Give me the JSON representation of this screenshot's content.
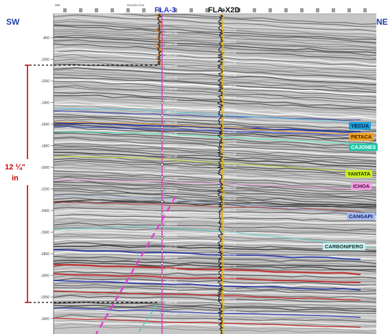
{
  "direction": {
    "left": "SW",
    "right": "NE"
  },
  "wells": [
    {
      "name": "FLA-3",
      "color": "#2b3bd6"
    },
    {
      "name": "FLA-X2D",
      "color": "#111111"
    }
  ],
  "thickness": {
    "line1": "12 ¼\"",
    "line2": "in",
    "color": "#c00000"
  },
  "header": {
    "left_tag": "SW",
    "center_tag": "Random line"
  },
  "time_ticks": [
    "-800",
    "-1000",
    "-1200",
    "-1400",
    "-1600",
    "-1800",
    "-2000",
    "-2200",
    "-2400",
    "-2600",
    "-2800",
    "-3000",
    "-3200",
    "-3400"
  ],
  "depth_labels": [
    "1200.00",
    "1300.00",
    "1400.00",
    "1500.00",
    "1600.00",
    "1700.00",
    "1800.00",
    "1900.00",
    "2000.00",
    "2100.00",
    "2200.00",
    "2300.00",
    "2400.00",
    "2500.00",
    "2600.00",
    "2700.00",
    "2800.00",
    "2900.00",
    "3000.00",
    "3100.00",
    "3200.00",
    "3300.00",
    "3400.00",
    "3500.00",
    "3600.00",
    "3700.00"
  ],
  "horizons": [
    {
      "name": "YECUA",
      "bg": "#1aa0d8",
      "fg": "#0b1a4a",
      "line": "#5fd0e8"
    },
    {
      "name": "PETACA",
      "bg": "#f0a020",
      "fg": "#3a1e00",
      "line": "#f0a020"
    },
    {
      "name": "CAJONES",
      "bg": "#20c8a8",
      "fg": "#ffffff",
      "line": "#40e0b0"
    },
    {
      "name": "YANTATA",
      "bg": "#c8f020",
      "fg": "#203000",
      "line": "#d8f040"
    },
    {
      "name": "ICHOA",
      "bg": "#f0a0e0",
      "fg": "#500040",
      "line": "#f0a0e0"
    },
    {
      "name": "CANGAPI",
      "bg": "#a8b8f0",
      "fg": "#10205a",
      "line": "#b0c0f0"
    },
    {
      "name": "CARBONIFERO",
      "bg": "#c8f0f0",
      "fg": "#103030",
      "line": "#60d8d0"
    }
  ],
  "colors": {
    "seismic_bg": "#c6c6c6",
    "red_reflector": "#c02020",
    "blue_reflector": "#1a2aa0",
    "well_track": "#e040c0",
    "well_trace": "#e0a000"
  }
}
